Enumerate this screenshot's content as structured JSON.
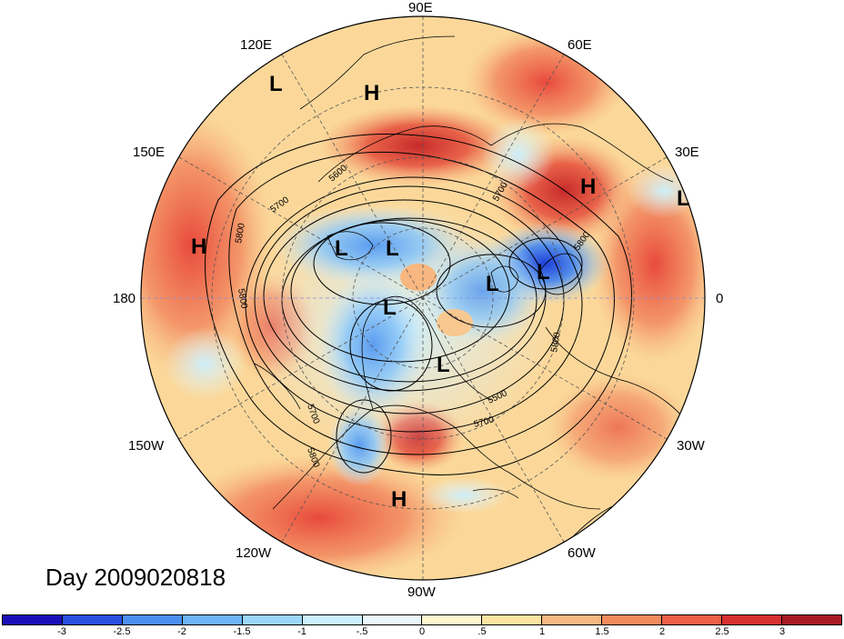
{
  "title": "Day 2009020818",
  "longitude_labels": [
    "90E",
    "60E",
    "120E",
    "30E",
    "150E",
    "180",
    "0",
    "150W",
    "30W",
    "120W",
    "60W",
    "90W"
  ],
  "pressure_centers": [
    {
      "label": "L"
    },
    {
      "label": "H"
    },
    {
      "label": "H"
    },
    {
      "label": "L"
    },
    {
      "label": "H"
    },
    {
      "label": "L"
    },
    {
      "label": "L"
    },
    {
      "label": "L"
    },
    {
      "label": "L"
    },
    {
      "label": "L"
    },
    {
      "label": "L"
    },
    {
      "label": "H"
    }
  ],
  "contour_labels": [
    "5600",
    "5700",
    "5800",
    "5800",
    "5800",
    "5800",
    "5700",
    "5800",
    "5500",
    "5700",
    "5700"
  ],
  "colorbar": {
    "colors": [
      "#1a0fb8",
      "#2a4fe0",
      "#4b8ff0",
      "#6db3f5",
      "#9bd6fb",
      "#ccefff",
      "#e9f7fb",
      "#fff8cf",
      "#fde3a1",
      "#f8b780",
      "#f38a5b",
      "#ec5f48",
      "#d63030",
      "#a71a24"
    ],
    "tick_labels": [
      "-3",
      "-2.5",
      "-2",
      "-1.5",
      "-1",
      "-.5",
      "0",
      ".5",
      "1",
      "1.5",
      "2",
      "2.5",
      "3"
    ]
  }
}
